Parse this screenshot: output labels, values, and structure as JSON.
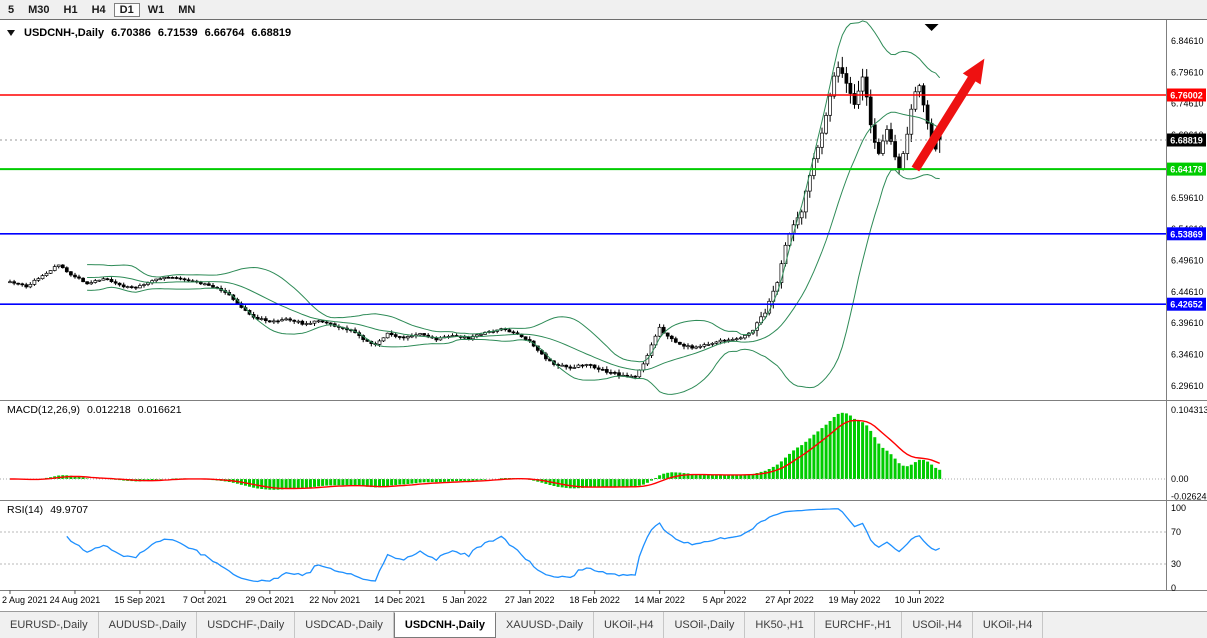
{
  "toolbar": {
    "timeframes": [
      {
        "label": "5",
        "active": false
      },
      {
        "label": "M30",
        "active": false
      },
      {
        "label": "H1",
        "active": false
      },
      {
        "label": "H4",
        "active": false
      },
      {
        "label": "D1",
        "active": true
      },
      {
        "label": "W1",
        "active": false
      },
      {
        "label": "MN",
        "active": false
      }
    ]
  },
  "chart_header": {
    "symbol": "USDCNH-,Daily",
    "open": "6.70386",
    "high": "6.71539",
    "low": "6.66764",
    "close": "6.68819"
  },
  "macd_header": {
    "label": "MACD(12,26,9)",
    "value": "0.012218",
    "signal": "0.016621"
  },
  "rsi_header": {
    "label": "RSI(14)",
    "value": "49.9707"
  },
  "tabs": [
    {
      "label": "EURUSD-,Daily",
      "active": false
    },
    {
      "label": "AUDUSD-,Daily",
      "active": false
    },
    {
      "label": "USDCHF-,Daily",
      "active": false
    },
    {
      "label": "USDCAD-,Daily",
      "active": false
    },
    {
      "label": "USDCNH-,Daily",
      "active": true
    },
    {
      "label": "XAUUSD-,Daily",
      "active": false
    },
    {
      "label": "UKOil-,H4",
      "active": false
    },
    {
      "label": "USOil-,Daily",
      "active": false
    },
    {
      "label": "HK50-,H1",
      "active": false
    },
    {
      "label": "EURCHF-,H1",
      "active": false
    },
    {
      "label": "USOil-,H4",
      "active": false
    },
    {
      "label": "UKOil-,H4",
      "active": false
    }
  ],
  "chart_data": {
    "type": "candlestick",
    "symbol": "USDCNH-,Daily",
    "bars_total": 230,
    "price_axis": {
      "ticks": [
        "6.84610",
        "6.79610",
        "6.74610",
        "6.69610",
        "6.64610",
        "6.59610",
        "6.54610",
        "6.49610",
        "6.44610",
        "6.39610",
        "6.34610",
        "6.29610"
      ]
    },
    "x_labels": [
      "2 Aug 2021",
      "24 Aug 2021",
      "15 Sep 2021",
      "7 Oct 2021",
      "29 Oct 2021",
      "22 Nov 2021",
      "14 Dec 2021",
      "5 Jan 2022",
      "27 Jan 2022",
      "18 Feb 2022",
      "14 Mar 2022",
      "5 Apr 2022",
      "27 Apr 2022",
      "19 May 2022",
      "10 Jun 2022"
    ],
    "x_label_step": 16,
    "price_path": [
      [
        0,
        6.462
      ],
      [
        4,
        6.455
      ],
      [
        8,
        6.472
      ],
      [
        12,
        6.49
      ],
      [
        15,
        6.474
      ],
      [
        19,
        6.46
      ],
      [
        23,
        6.468
      ],
      [
        27,
        6.456
      ],
      [
        31,
        6.452
      ],
      [
        35,
        6.464
      ],
      [
        39,
        6.47
      ],
      [
        43,
        6.466
      ],
      [
        47,
        6.46
      ],
      [
        51,
        6.452
      ],
      [
        54,
        6.441
      ],
      [
        57,
        6.421
      ],
      [
        60,
        6.406
      ],
      [
        64,
        6.398
      ],
      [
        68,
        6.404
      ],
      [
        72,
        6.396
      ],
      [
        76,
        6.399
      ],
      [
        80,
        6.392
      ],
      [
        84,
        6.384
      ],
      [
        87,
        6.371
      ],
      [
        90,
        6.361
      ],
      [
        93,
        6.379
      ],
      [
        97,
        6.373
      ],
      [
        101,
        6.379
      ],
      [
        105,
        6.37
      ],
      [
        109,
        6.377
      ],
      [
        113,
        6.372
      ],
      [
        117,
        6.381
      ],
      [
        121,
        6.387
      ],
      [
        125,
        6.378
      ],
      [
        128,
        6.367
      ],
      [
        131,
        6.346
      ],
      [
        134,
        6.331
      ],
      [
        138,
        6.325
      ],
      [
        142,
        6.331
      ],
      [
        146,
        6.321
      ],
      [
        150,
        6.314
      ],
      [
        154,
        6.31
      ],
      [
        156,
        6.33
      ],
      [
        158,
        6.362
      ],
      [
        160,
        6.389
      ],
      [
        162,
        6.374
      ],
      [
        165,
        6.363
      ],
      [
        168,
        6.357
      ],
      [
        171,
        6.362
      ],
      [
        174,
        6.367
      ],
      [
        177,
        6.369
      ],
      [
        180,
        6.374
      ],
      [
        183,
        6.384
      ],
      [
        185,
        6.403
      ],
      [
        187,
        6.429
      ],
      [
        189,
        6.463
      ],
      [
        191,
        6.521
      ],
      [
        193,
        6.556
      ],
      [
        195,
        6.572
      ],
      [
        196,
        6.606
      ],
      [
        198,
        6.66
      ],
      [
        200,
        6.701
      ],
      [
        201,
        6.731
      ],
      [
        202,
        6.761
      ],
      [
        203,
        6.791
      ],
      [
        204,
        6.808
      ],
      [
        205,
        6.799
      ],
      [
        206,
        6.779
      ],
      [
        207,
        6.759
      ],
      [
        208,
        6.745
      ],
      [
        209,
        6.763
      ],
      [
        210,
        6.786
      ],
      [
        211,
        6.759
      ],
      [
        212,
        6.716
      ],
      [
        213,
        6.688
      ],
      [
        214,
        6.666
      ],
      [
        215,
        6.684
      ],
      [
        216,
        6.709
      ],
      [
        217,
        6.687
      ],
      [
        218,
        6.66
      ],
      [
        219,
        6.645
      ],
      [
        220,
        6.668
      ],
      [
        221,
        6.698
      ],
      [
        222,
        6.738
      ],
      [
        223,
        6.769
      ],
      [
        224,
        6.777
      ],
      [
        225,
        6.747
      ],
      [
        226,
        6.713
      ],
      [
        227,
        6.693
      ],
      [
        228,
        6.677
      ],
      [
        229,
        6.688
      ]
    ],
    "volatility_zones": [
      {
        "from": 0,
        "to": 51,
        "amp": 0.0042
      },
      {
        "from": 52,
        "to": 100,
        "amp": 0.0052
      },
      {
        "from": 101,
        "to": 127,
        "amp": 0.004
      },
      {
        "from": 128,
        "to": 168,
        "amp": 0.006
      },
      {
        "from": 169,
        "to": 183,
        "amp": 0.0045
      },
      {
        "from": 184,
        "to": 202,
        "amp": 0.013
      },
      {
        "from": 203,
        "to": 213,
        "amp": 0.019
      },
      {
        "from": 214,
        "to": 229,
        "amp": 0.014
      }
    ],
    "last_candle": {
      "open": 6.70386,
      "high": 6.71539,
      "low": 6.66764,
      "close": 6.68819
    },
    "h_lines": [
      {
        "price": 6.76002,
        "label": "6.76002",
        "color": "#FF0000",
        "thick": 1.6
      },
      {
        "price": 6.64178,
        "label": "6.64178",
        "color": "#00CC00",
        "thick": 2
      },
      {
        "price": 6.53869,
        "label": "6.53869",
        "color": "#0000FF",
        "thick": 1.6
      },
      {
        "price": 6.42652,
        "label": "6.42652",
        "color": "#0000FF",
        "thick": 1.6
      }
    ],
    "current_price": {
      "price": 6.68819,
      "label": "6.68819",
      "color": "#000000"
    },
    "bollinger": {
      "period": 20,
      "deviation": 2,
      "color": "#2E8B57"
    },
    "macd": {
      "fast": 12,
      "slow": 26,
      "signal": 9,
      "hist_color": "#00CC00",
      "signal_color": "#FF0000",
      "axis_labels": [
        {
          "value": 0.104313,
          "text": "0.104313"
        },
        {
          "value": 0,
          "text": "0.00"
        },
        {
          "value": -0.026249,
          "text": "-0.026249"
        }
      ]
    },
    "rsi": {
      "period": 14,
      "color": "#1E90FF",
      "levels": [
        100,
        70,
        30,
        0
      ]
    },
    "annotations": {
      "arrow": {
        "color": "#EE1111",
        "from": {
          "bar": 223,
          "price": 6.642
        },
        "to": {
          "bar": 240,
          "price": 6.818
        }
      },
      "top_marker": {
        "bar": 227
      }
    }
  }
}
